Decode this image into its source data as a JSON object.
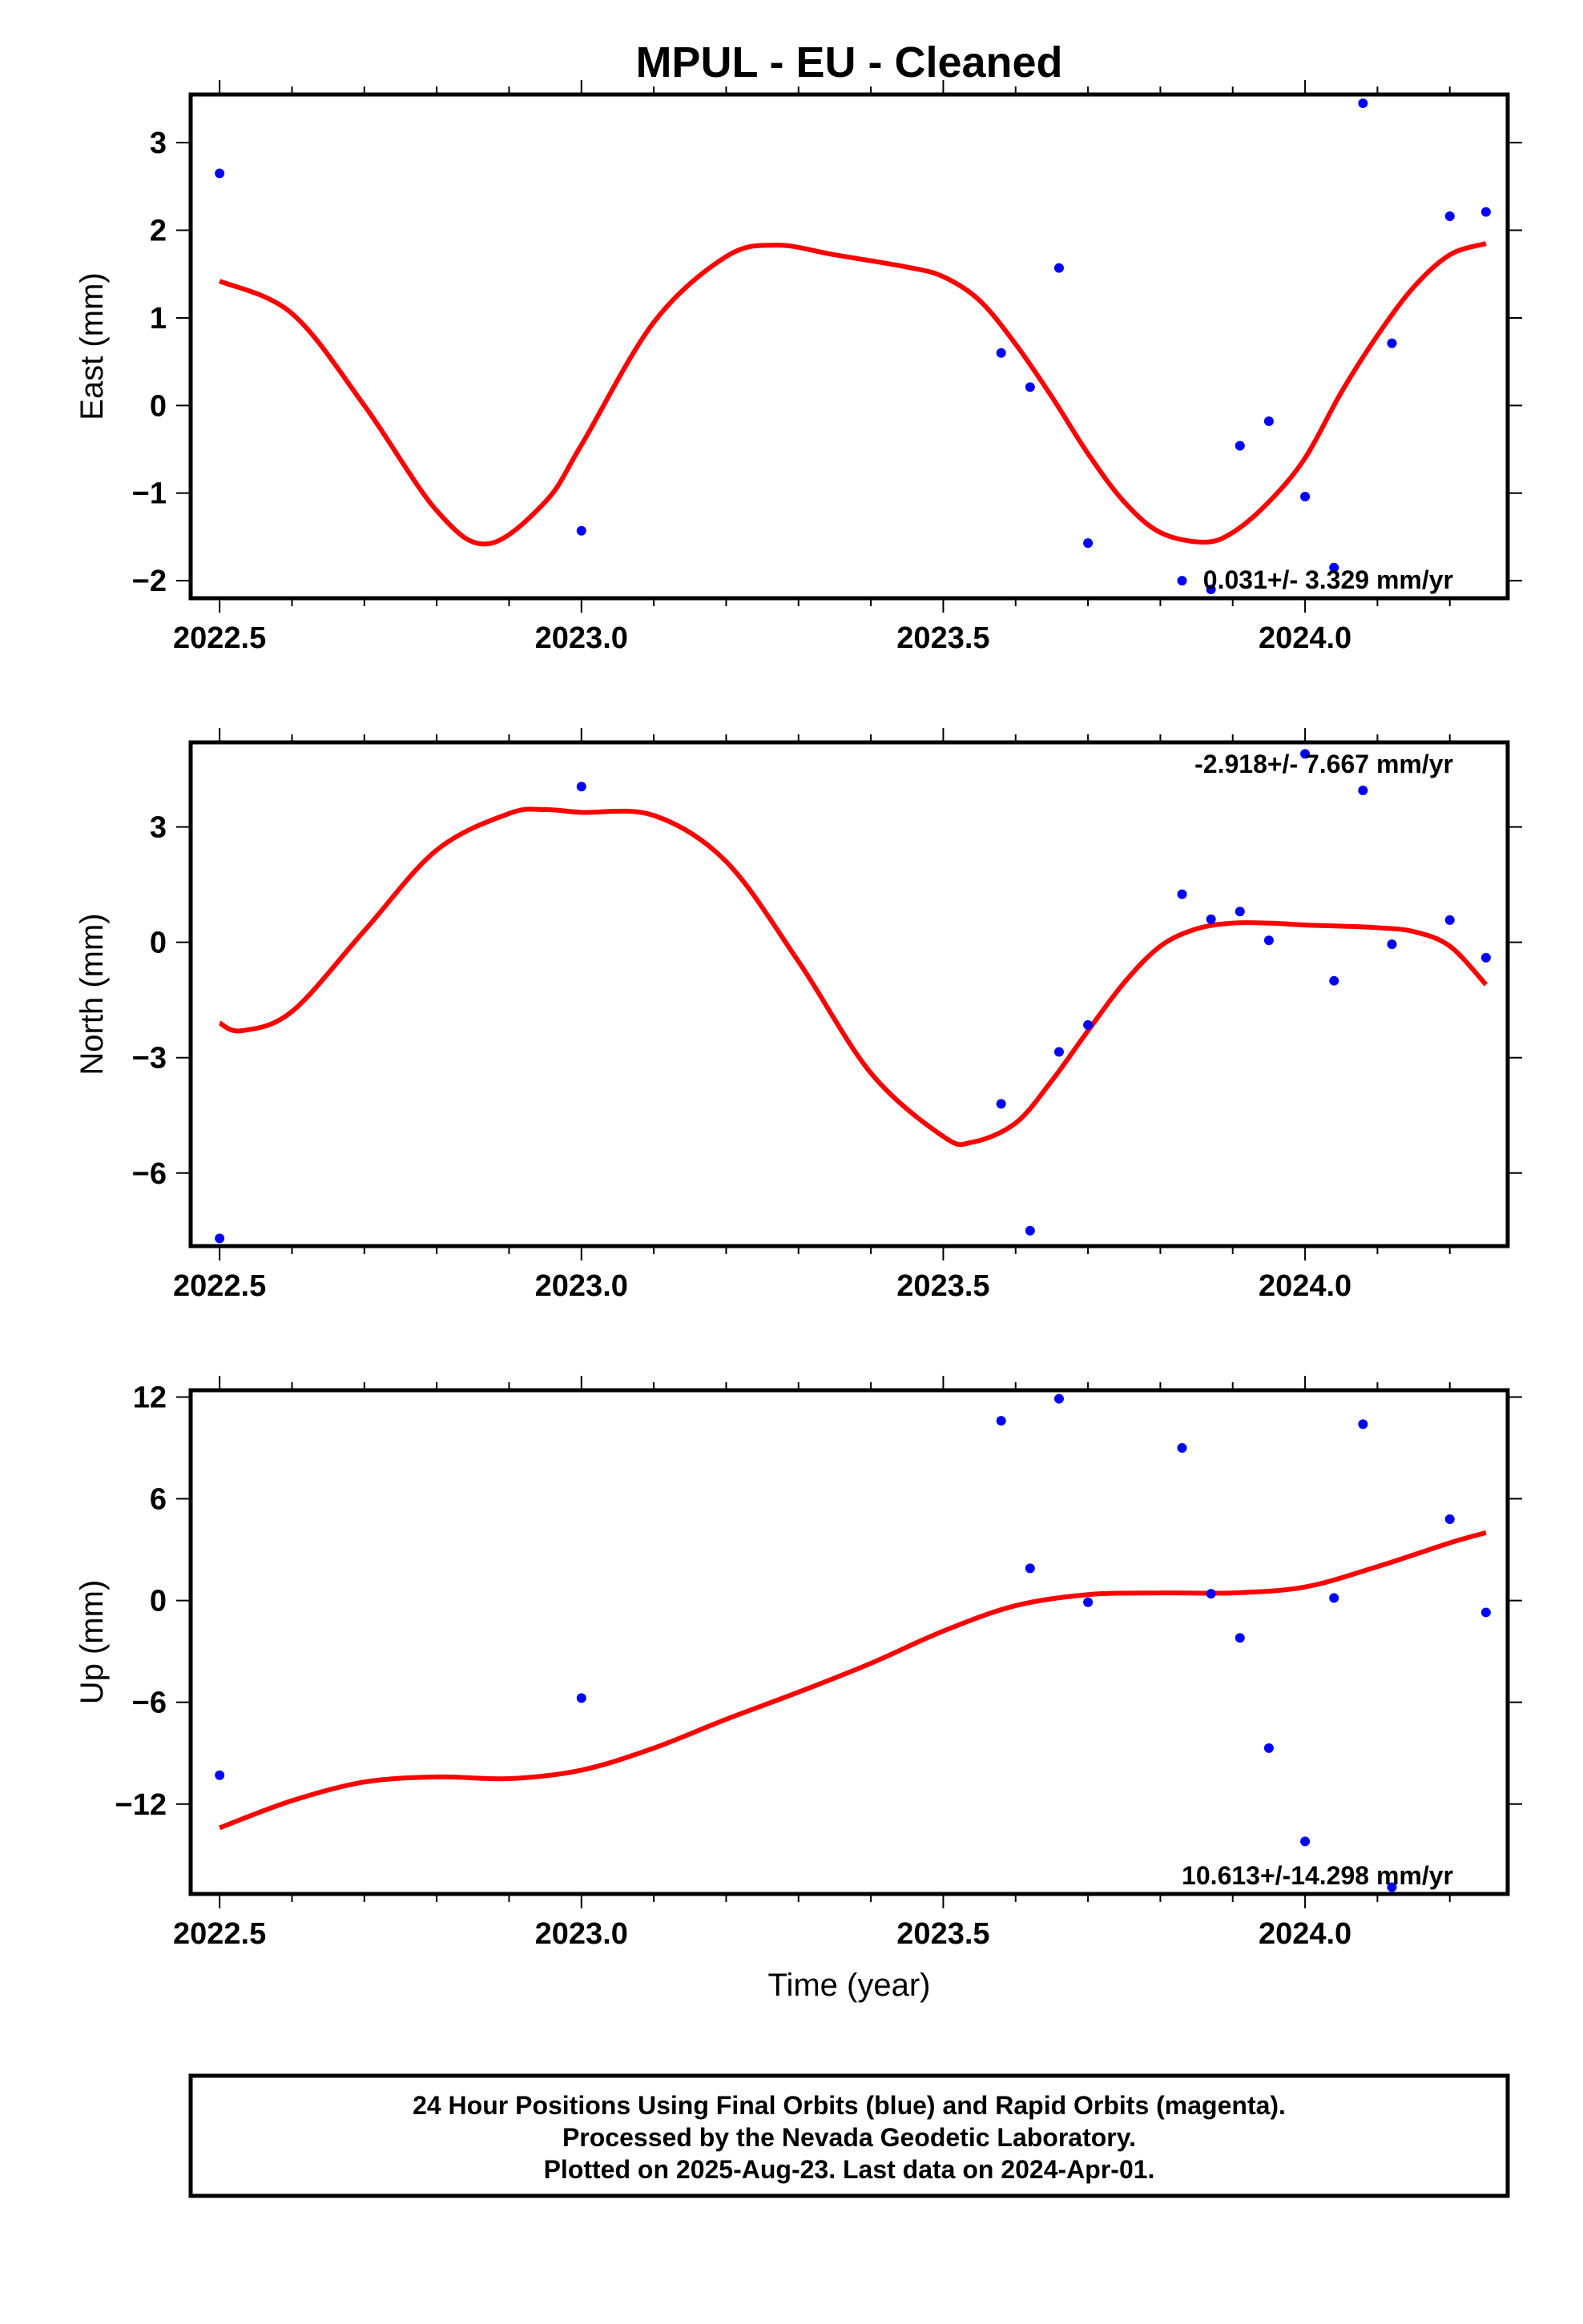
{
  "title": "MPUL  - EU - Cleaned",
  "colors": {
    "final": "#0000ff",
    "rapid": "#ff00ff",
    "fit": "#ff0000",
    "frame": "#000000"
  },
  "xaxis": {
    "label": "Time (year)",
    "range": [
      2022.46,
      2024.28
    ],
    "ticks": [
      2022.5,
      2023.0,
      2023.5,
      2024.0
    ],
    "tick_labels": [
      "2022.5",
      "2023.0",
      "2023.5",
      "2024.0"
    ],
    "minor_step": 0.1
  },
  "chart_data": [
    {
      "type": "scatter",
      "component": "east",
      "ylabel": "East (mm)",
      "ylim": [
        -2.2,
        3.55
      ],
      "yticks": [
        -2,
        -1,
        0,
        1,
        2,
        3
      ],
      "ytick_labels": [
        "−2",
        "−1",
        "0",
        "1",
        "2",
        "3"
      ],
      "rate_text": "0.031+/- 3.329 mm/yr",
      "rate_position": "bottom-right",
      "points": {
        "x": [
          2022.5,
          2023.0,
          2023.58,
          2023.62,
          2023.66,
          2023.7,
          2023.83,
          2023.87,
          2023.91,
          2023.95,
          2024.0,
          2024.04,
          2024.08,
          2024.12,
          2024.2,
          2024.25
        ],
        "y": [
          2.65,
          -1.43,
          0.6,
          0.21,
          1.57,
          -1.57,
          -2.0,
          -2.1,
          -0.46,
          -0.18,
          -1.04,
          -1.85,
          3.45,
          0.71,
          2.16,
          2.21
        ]
      },
      "fit": {
        "x": [
          2022.5,
          2022.6,
          2022.7,
          2022.8,
          2022.87,
          2022.95,
          2023.0,
          2023.1,
          2023.2,
          2023.27,
          2023.35,
          2023.45,
          2023.5,
          2023.55,
          2023.6,
          2023.65,
          2023.7,
          2023.75,
          2023.8,
          2023.86,
          2023.9,
          2023.95,
          2024.0,
          2024.05,
          2024.1,
          2024.15,
          2024.2,
          2024.25
        ],
        "y": [
          1.42,
          1.05,
          0.0,
          -1.2,
          -1.58,
          -1.1,
          -0.45,
          0.95,
          1.7,
          1.83,
          1.72,
          1.58,
          1.47,
          1.2,
          0.7,
          0.1,
          -0.55,
          -1.1,
          -1.45,
          -1.56,
          -1.45,
          -1.1,
          -0.6,
          0.15,
          0.8,
          1.35,
          1.72,
          1.85
        ]
      }
    },
    {
      "type": "scatter",
      "component": "north",
      "ylabel": "North (mm)",
      "ylim": [
        -7.9,
        5.2
      ],
      "yticks": [
        -6,
        -3,
        0,
        3
      ],
      "ytick_labels": [
        "−6",
        "−3",
        "0",
        "3"
      ],
      "rate_text": "-2.918+/- 7.667 mm/yr",
      "rate_position": "top-right",
      "points": {
        "x": [
          2022.5,
          2023.0,
          2023.58,
          2023.62,
          2023.66,
          2023.7,
          2023.83,
          2023.87,
          2023.91,
          2023.95,
          2024.0,
          2024.04,
          2024.08,
          2024.12,
          2024.2,
          2024.25
        ],
        "y": [
          -7.7,
          4.05,
          -4.2,
          -7.5,
          -2.85,
          -2.15,
          1.25,
          0.6,
          0.8,
          0.05,
          4.9,
          -1.0,
          3.95,
          -0.05,
          0.58,
          -0.4
        ]
      },
      "fit": {
        "x": [
          2022.5,
          2022.53,
          2022.6,
          2022.7,
          2022.8,
          2022.9,
          2022.95,
          2023.0,
          2023.1,
          2023.2,
          2023.3,
          2023.4,
          2023.5,
          2023.54,
          2023.6,
          2023.65,
          2023.7,
          2023.75,
          2023.8,
          2023.85,
          2023.9,
          2023.95,
          2024.0,
          2024.05,
          2024.1,
          2024.15,
          2024.2,
          2024.25
        ],
        "y": [
          -2.1,
          -2.3,
          -1.8,
          0.3,
          2.4,
          3.35,
          3.45,
          3.38,
          3.3,
          2.1,
          -0.5,
          -3.4,
          -5.05,
          -5.2,
          -4.7,
          -3.6,
          -2.3,
          -1.05,
          -0.1,
          0.35,
          0.5,
          0.5,
          0.45,
          0.42,
          0.38,
          0.28,
          -0.1,
          -1.1
        ]
      }
    },
    {
      "type": "scatter",
      "component": "up",
      "ylabel": "Up (mm)",
      "ylim": [
        -17.3,
        12.4
      ],
      "yticks": [
        -12,
        -6,
        0,
        6,
        12
      ],
      "ytick_labels": [
        "−12",
        "−6",
        "0",
        "6",
        "12"
      ],
      "rate_text": "10.613+/-14.298 mm/yr",
      "rate_position": "bottom-right",
      "points": {
        "x": [
          2022.5,
          2023.0,
          2023.58,
          2023.62,
          2023.66,
          2023.7,
          2023.83,
          2023.87,
          2023.91,
          2023.95,
          2024.0,
          2024.04,
          2024.08,
          2024.12,
          2024.2,
          2024.25
        ],
        "y": [
          -10.3,
          -5.75,
          10.6,
          1.9,
          11.9,
          -0.1,
          9.0,
          0.4,
          -2.2,
          -8.7,
          -14.2,
          0.15,
          10.4,
          -16.9,
          4.8,
          -0.7
        ]
      },
      "fit": {
        "x": [
          2022.5,
          2022.6,
          2022.7,
          2022.8,
          2022.9,
          2023.0,
          2023.1,
          2023.2,
          2023.3,
          2023.4,
          2023.5,
          2023.6,
          2023.7,
          2023.8,
          2023.9,
          2024.0,
          2024.1,
          2024.2,
          2024.25
        ],
        "y": [
          -13.4,
          -11.8,
          -10.7,
          -10.4,
          -10.5,
          -10.0,
          -8.7,
          -7.0,
          -5.4,
          -3.7,
          -1.8,
          -0.3,
          0.35,
          0.45,
          0.45,
          0.8,
          2.0,
          3.4,
          4.0
        ]
      }
    }
  ],
  "footer": {
    "lines": [
      "24 Hour Positions Using Final Orbits (blue) and Rapid Orbits (magenta).",
      "Processed by the Nevada Geodetic Laboratory.",
      "Plotted on 2025-Aug-23. Last data on 2024-Apr-01."
    ]
  }
}
